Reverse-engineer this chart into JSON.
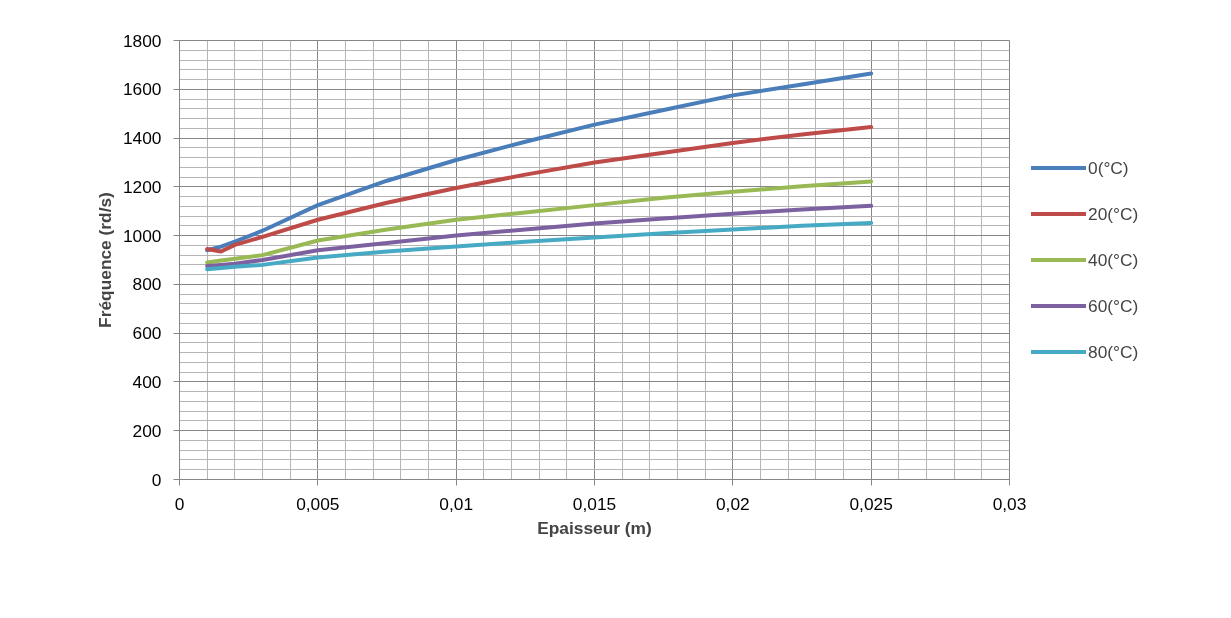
{
  "chart_data": {
    "type": "line",
    "xlabel": "Epaisseur (m)",
    "ylabel": "Fréquence (rd/s)",
    "x": [
      0.001,
      0.0015,
      0.002,
      0.003,
      0.005,
      0.0075,
      0.01,
      0.0125,
      0.015,
      0.0175,
      0.02,
      0.0225,
      0.025
    ],
    "series": [
      {
        "name": "0(°C)",
        "color": "#4a7ebb",
        "values": [
          940,
          955,
          975,
          1020,
          1125,
          1225,
          1310,
          1385,
          1455,
          1515,
          1575,
          1620,
          1665
        ]
      },
      {
        "name": "20(°C)",
        "color": "#be4b48",
        "values": [
          945,
          935,
          962,
          995,
          1065,
          1135,
          1195,
          1250,
          1300,
          1340,
          1380,
          1415,
          1445
        ]
      },
      {
        "name": "40(°C)",
        "color": "#98b954",
        "values": [
          890,
          898,
          905,
          920,
          980,
          1025,
          1065,
          1095,
          1125,
          1155,
          1180,
          1202,
          1222
        ]
      },
      {
        "name": "60(°C)",
        "color": "#7d60a0",
        "values": [
          875,
          880,
          885,
          900,
          940,
          970,
          1000,
          1025,
          1050,
          1070,
          1090,
          1107,
          1122
        ]
      },
      {
        "name": "80(°C)",
        "color": "#46aac5",
        "values": [
          862,
          867,
          872,
          880,
          910,
          935,
          955,
          975,
          992,
          1010,
          1025,
          1040,
          1052
        ]
      }
    ],
    "xlim": [
      0,
      0.03
    ],
    "ylim": [
      0,
      1800
    ],
    "xticks": [
      {
        "value": 0,
        "label": "0"
      },
      {
        "value": 0.005,
        "label": "0,005"
      },
      {
        "value": 0.01,
        "label": "0,01"
      },
      {
        "value": 0.015,
        "label": "0,015"
      },
      {
        "value": 0.02,
        "label": "0,02"
      },
      {
        "value": 0.025,
        "label": "0,025"
      },
      {
        "value": 0.03,
        "label": "0,03"
      }
    ],
    "yticks": [
      0,
      200,
      400,
      600,
      800,
      1000,
      1200,
      1400,
      1600,
      1800
    ],
    "grid": true,
    "legend": "right",
    "marker": "none",
    "line_style": "solid"
  }
}
